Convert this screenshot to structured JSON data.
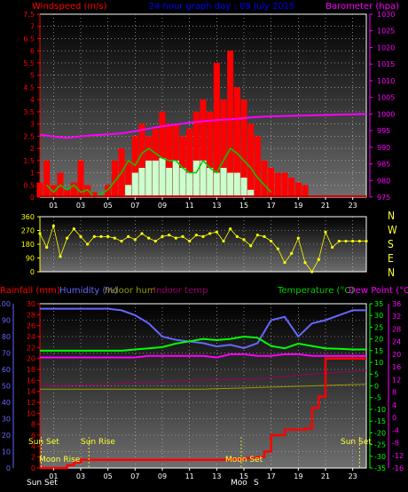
{
  "header": {
    "left": "Windspeed (m/s)",
    "center": "24 hour graph day : 09 July 2015",
    "right": "Barometer (hpa)"
  },
  "labels": {
    "rainfall": "Rainfall (mm)",
    "humidity": "Humidity (%)",
    "indoor_hum": "Indoor hum",
    "indoor_temp": "Indoor temp",
    "temperature": "Temperature (°C)",
    "dew_point": "Dew Point (°C)",
    "sun_set_left": "Sun Set",
    "sun_rise": "Sun Rise",
    "moon_rise": "Moon Rise",
    "moon_set": "Moon Set",
    "sun_set_right": "Sun Set",
    "bottom_sun_set": "Sun Set",
    "bottom_moon": "Moo",
    "bottom_sunset2": "S",
    "compass": [
      "N",
      "W",
      "S",
      "E",
      "N"
    ]
  },
  "colors": {
    "wind": "#ff0000",
    "gust": "#ccffcc",
    "avg_wind": "#00cc00",
    "barometer": "#ff00ff",
    "direction": "#ffff00",
    "rain": "#ff0000",
    "humidity": "#6666ff",
    "indoor_hum": "#999900",
    "indoor_temp": "#990066",
    "temperature": "#00ff00",
    "dew_point": "#ff00ff"
  },
  "chart_data": [
    {
      "type": "bar",
      "title": "24 hour graph day : 09 July 2015",
      "ylabel": "Windspeed (m/s)",
      "y2label": "Barometer (hpa)",
      "ylim": [
        0,
        7.5
      ],
      "y2lim": [
        975,
        1030
      ],
      "yticks": [
        0,
        0.5,
        1,
        1.5,
        2,
        2.5,
        3,
        3.5,
        4,
        4.5,
        5,
        5.5,
        6,
        6.5,
        7,
        7.5
      ],
      "y2ticks": [
        975,
        980,
        985,
        990,
        995,
        1000,
        1005,
        1010,
        1015,
        1020,
        1025,
        1030
      ],
      "xticks": [
        "01",
        "03",
        "05",
        "07",
        "09",
        "11",
        "13",
        "15",
        "17",
        "19",
        "21",
        "23"
      ],
      "series": [
        {
          "name": "Windspeed",
          "x": [
            0.0,
            0.5,
            1.0,
            1.5,
            2.0,
            2.5,
            3.0,
            3.5,
            4.0,
            4.5,
            5.0,
            5.5,
            6.0,
            6.5,
            7.0,
            7.5,
            8.0,
            8.5,
            9.0,
            9.5,
            10.0,
            10.5,
            11.0,
            11.5,
            12.0,
            12.5,
            13.0,
            13.5,
            14.0,
            14.5,
            15.0,
            15.5,
            16.0,
            16.5,
            17.0,
            17.5,
            18.0,
            18.5,
            19.0,
            19.5,
            20.0,
            20.5,
            21.0,
            21.5,
            22.0,
            22.5,
            23.0,
            23.5,
            24.0
          ],
          "values": [
            0.6,
            1.5,
            0.5,
            1.0,
            0.3,
            0.6,
            1.5,
            0.5,
            0.2,
            0.0,
            0.5,
            1.5,
            2.0,
            1.5,
            2.5,
            3.0,
            2.5,
            2.8,
            3.5,
            3.0,
            3.0,
            2.5,
            2.8,
            3.5,
            4.0,
            3.5,
            5.5,
            4.0,
            6.0,
            4.5,
            4.0,
            3.0,
            2.5,
            1.5,
            1.2,
            1.0,
            1.0,
            0.8,
            0.6,
            0.5,
            0.0,
            0.0,
            0.0,
            0.0,
            0.0,
            0.0,
            0.0,
            0.0,
            0.0
          ]
        },
        {
          "name": "Gust",
          "x": [
            6.5,
            7.0,
            7.5,
            8.0,
            8.5,
            9.0,
            9.5,
            10.0,
            10.5,
            11.0,
            11.5,
            12.0,
            12.5,
            13.0,
            13.5,
            14.0,
            14.5,
            15.0,
            15.5
          ],
          "values": [
            0.5,
            1.0,
            1.2,
            1.5,
            1.5,
            1.6,
            1.2,
            1.5,
            1.2,
            1.0,
            1.5,
            1.5,
            1.2,
            1.0,
            1.2,
            1.0,
            1.0,
            0.8,
            0.3
          ]
        },
        {
          "name": "Average wind",
          "x": [
            0.5,
            1.0,
            1.5,
            2.0,
            2.5,
            3.0,
            3.5,
            4.0,
            5.0,
            6.0,
            6.5,
            7.0,
            7.5,
            8.0,
            8.5,
            9.0,
            9.5,
            10.0,
            10.5,
            11.0,
            11.5,
            12.0,
            12.5,
            13.0,
            13.5,
            14.0,
            14.5,
            15.0,
            15.5,
            16.0,
            16.5,
            17.0
          ],
          "values": [
            0.5,
            0.2,
            0.5,
            0.3,
            0.5,
            0.2,
            0.3,
            0.0,
            0.3,
            1.0,
            1.5,
            1.3,
            1.8,
            2.0,
            1.8,
            1.6,
            1.5,
            1.5,
            1.2,
            1.0,
            1.0,
            1.5,
            1.2,
            1.0,
            1.5,
            2.0,
            1.8,
            1.5,
            1.2,
            0.8,
            0.5,
            0.2
          ]
        },
        {
          "name": "Barometer",
          "axis": "y2",
          "x": [
            0,
            1,
            2,
            3,
            4,
            5,
            6,
            7,
            8,
            9,
            10,
            11,
            12,
            13,
            14,
            15,
            16,
            17,
            18,
            19,
            20,
            21,
            22,
            23,
            24
          ],
          "values": [
            993.8,
            993.2,
            992.8,
            993.3,
            993.6,
            993.9,
            994.2,
            994.8,
            995.6,
            996.3,
            996.8,
            997.4,
            997.8,
            998.2,
            998.4,
            998.8,
            999.1,
            999.3,
            999.4,
            999.5,
            999.6,
            999.7,
            999.8,
            999.9,
            1000.0
          ]
        }
      ]
    },
    {
      "type": "scatter",
      "ylabel": "",
      "ylim": [
        0,
        360
      ],
      "yticks": [
        0,
        90,
        180,
        270,
        360
      ],
      "series": [
        {
          "name": "Wind direction",
          "x": [
            0.0,
            0.5,
            1.0,
            1.5,
            2.0,
            2.5,
            3.0,
            3.5,
            4.0,
            4.5,
            5.0,
            5.5,
            6.0,
            6.5,
            7.0,
            7.5,
            8.0,
            8.5,
            9.0,
            9.5,
            10.0,
            10.5,
            11.0,
            11.5,
            12.0,
            12.5,
            13.0,
            13.5,
            14.0,
            14.5,
            15.0,
            15.5,
            16.0,
            16.5,
            17.0,
            17.5,
            18.0,
            18.5,
            19.0,
            19.5,
            20.0,
            20.5,
            21.0,
            21.5,
            22.0,
            22.5,
            23.0,
            23.5,
            24.0
          ],
          "values": [
            250,
            160,
            300,
            100,
            220,
            280,
            230,
            180,
            230,
            230,
            230,
            220,
            200,
            230,
            210,
            250,
            220,
            200,
            230,
            240,
            220,
            230,
            200,
            240,
            230,
            250,
            260,
            200,
            280,
            230,
            210,
            170,
            240,
            230,
            200,
            150,
            60,
            120,
            220,
            60,
            0,
            80,
            260,
            160,
            200,
            200,
            200,
            200,
            200
          ]
        }
      ]
    },
    {
      "type": "line",
      "ylabel": "Rainfall (mm)",
      "y2label": "Temperature (°C)",
      "xticks": [
        "01",
        "03",
        "05",
        "07",
        "09",
        "11",
        "13",
        "15",
        "17",
        "19",
        "21",
        "23"
      ],
      "axes": {
        "humidity": {
          "label": "Humidity (%)",
          "ticks": [
            0,
            10,
            20,
            30,
            40,
            50,
            60,
            70,
            80,
            90,
            100
          ]
        },
        "rainfall": {
          "label": "Rainfall (mm)",
          "ticks": [
            0,
            2,
            4,
            6,
            8,
            10,
            12,
            14,
            16,
            18,
            20,
            22,
            24,
            26,
            28,
            30
          ]
        },
        "temperature": {
          "label": "Temperature (°C)",
          "ticks": [
            -35,
            -30,
            -25,
            -20,
            -15,
            -10,
            -5,
            0,
            5,
            10,
            15,
            20,
            25,
            30,
            35
          ]
        },
        "dewpoint": {
          "label": "Dew Point (°C)",
          "ticks": [
            -16,
            -12,
            -8,
            -4,
            0,
            4,
            8,
            12,
            16,
            20,
            24,
            28,
            32,
            36
          ]
        }
      },
      "series": [
        {
          "name": "Humidity",
          "axis": "humidity",
          "x": [
            0,
            1,
            2,
            3,
            4,
            5,
            6,
            7,
            8,
            9,
            10,
            11,
            12,
            13,
            14,
            15,
            16,
            17,
            18,
            19,
            20,
            21,
            22,
            23,
            24
          ],
          "values": [
            97,
            97,
            97,
            97,
            97,
            97,
            96,
            93,
            88,
            80,
            78,
            77,
            76,
            74,
            75,
            73,
            76,
            90,
            92,
            80,
            88,
            90,
            93,
            96,
            96
          ]
        },
        {
          "name": "Indoor hum",
          "axis": "humidity",
          "x": [
            0,
            4,
            8,
            12,
            16,
            20,
            24
          ],
          "values": [
            48,
            48,
            48,
            48,
            49,
            50,
            51
          ]
        },
        {
          "name": "Indoor temp",
          "axis": "temperature",
          "x": [
            0,
            4,
            8,
            12,
            16,
            20,
            24
          ],
          "values": [
            0,
            0.5,
            1.5,
            2.5,
            3.0,
            5.0,
            6.5
          ]
        },
        {
          "name": "Temperature",
          "axis": "temperature",
          "x": [
            0,
            1,
            2,
            3,
            4,
            5,
            6,
            7,
            8,
            9,
            10,
            11,
            12,
            13,
            14,
            15,
            16,
            17,
            18,
            19,
            20,
            21,
            22,
            23,
            24
          ],
          "values": [
            15,
            15,
            15,
            15,
            15,
            15,
            15,
            15.5,
            16,
            16.5,
            18,
            19,
            20,
            19.5,
            20,
            21,
            20.5,
            17,
            16,
            18,
            17,
            16,
            15.8,
            15.5,
            15.5
          ]
        },
        {
          "name": "Dew point",
          "axis": "dewpoint",
          "x": [
            0,
            1,
            2,
            3,
            4,
            5,
            6,
            7,
            8,
            9,
            10,
            11,
            12,
            13,
            14,
            15,
            16,
            17,
            18,
            19,
            20,
            21,
            22,
            23,
            24
          ],
          "values": [
            19,
            19,
            19,
            19,
            19,
            19,
            19,
            19,
            19.5,
            19.5,
            19.5,
            19.5,
            19.5,
            19,
            20,
            20,
            19.5,
            19.5,
            20,
            20,
            19.5,
            19.5,
            19.5,
            19.5,
            19.5
          ]
        },
        {
          "name": "Rainfall",
          "axis": "rainfall",
          "x": [
            0,
            1,
            2,
            2.5,
            3,
            4,
            5,
            6,
            7,
            8,
            9,
            10,
            11,
            12,
            13,
            14,
            15,
            16,
            16.5,
            17,
            18,
            19,
            19.5,
            20,
            20.5,
            21,
            22,
            23,
            24
          ],
          "values": [
            0,
            0,
            0.5,
            1,
            1.5,
            1.5,
            1.5,
            1.5,
            1.5,
            1.5,
            1.5,
            1.5,
            1.5,
            1.5,
            1.5,
            1.6,
            1.8,
            2,
            3,
            6,
            7,
            7,
            7.2,
            11,
            13,
            20,
            20,
            20,
            20
          ]
        }
      ]
    }
  ]
}
